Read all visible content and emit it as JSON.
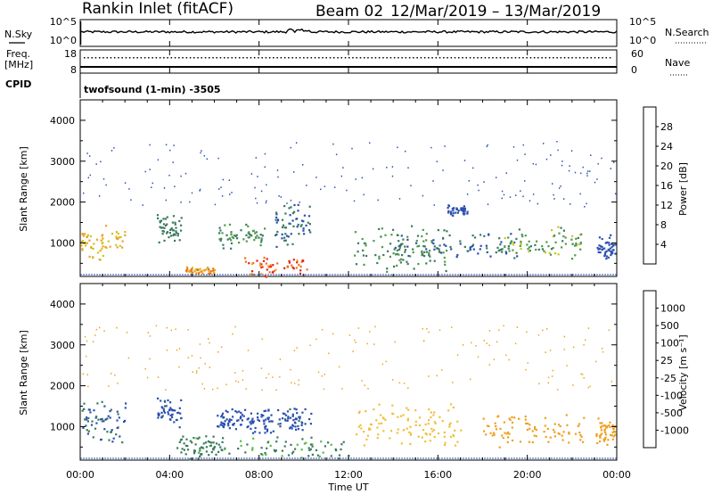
{
  "header": {
    "station": "Rankin Inlet (fitACF)",
    "beam": "Beam 02",
    "dates": "12/Mar/2019 – 13/Mar/2019"
  },
  "noise_panel": {
    "left_label": "N.Sky",
    "left_ticks": [
      "10^5",
      "10^0"
    ],
    "right_label": "N.Search",
    "right_ticks": [
      "10^5",
      "10^0"
    ]
  },
  "freq_panel": {
    "left_label_1": "Freq.",
    "left_label_2": "[MHz]",
    "left_ticks": [
      "18",
      "8"
    ],
    "right_label": "Nave",
    "right_ticks": [
      "60",
      "0"
    ]
  },
  "cpid": {
    "label": "CPID",
    "mode_text": "twofsound (1-min) -3505"
  },
  "colors": {
    "background": "#ffffff",
    "axis": "#000000",
    "power_scale": [
      "#1a1aff",
      "#2a4fb0",
      "#3a7a5e",
      "#4f9a4a",
      "#c8c820",
      "#f0a020",
      "#f07020",
      "#e82010"
    ],
    "velocity_scale": [
      "#1a1aff",
      "#2a4fb0",
      "#3a7a5e",
      "#50c040",
      "#b8b8b8",
      "#f0c040",
      "#f0a020",
      "#f06020",
      "#e82010"
    ]
  },
  "chart_data": [
    {
      "type": "heatmap",
      "name": "power",
      "ylabel": "Slant Range [km]",
      "yticks": [
        "1000",
        "2000",
        "3000",
        "4000"
      ],
      "ylim": [
        180,
        4500
      ],
      "colorbar_label": "Power [dB]",
      "colorbar_ticks": [
        "4",
        "8",
        "12",
        "16",
        "20",
        "24",
        "28"
      ],
      "colorbar_range": [
        0,
        32
      ],
      "clusters": [
        {
          "t": [
            0.0,
            2.0
          ],
          "r": [
            550,
            1500
          ],
          "value": 20
        },
        {
          "t": [
            3.4,
            4.5
          ],
          "r": [
            950,
            1750
          ],
          "value": 10
        },
        {
          "t": [
            6.1,
            8.3
          ],
          "r": [
            850,
            1550
          ],
          "value": 12
        },
        {
          "t": [
            8.6,
            10.3
          ],
          "r": [
            850,
            2100
          ],
          "value": 8
        },
        {
          "t": [
            4.7,
            6.0
          ],
          "r": [
            250,
            450
          ],
          "value": 22
        },
        {
          "t": [
            7.3,
            10.2
          ],
          "r": [
            180,
            700
          ],
          "value": 28
        },
        {
          "t": [
            12.2,
            16.5
          ],
          "r": [
            250,
            1500
          ],
          "value": 12
        },
        {
          "t": [
            14.0,
            19.5
          ],
          "r": [
            600,
            1300
          ],
          "value": 8
        },
        {
          "t": [
            16.3,
            17.3
          ],
          "r": [
            1650,
            1950
          ],
          "value": 6
        },
        {
          "t": [
            18.6,
            22.5
          ],
          "r": [
            500,
            1450
          ],
          "value": 14
        },
        {
          "t": [
            23.1,
            23.9
          ],
          "r": [
            500,
            1300
          ],
          "value": 6
        }
      ],
      "scatter": {
        "t": [
          0.0,
          24.0
        ],
        "r": [
          1900,
          3500
        ],
        "value": 4
      }
    },
    {
      "type": "heatmap",
      "name": "velocity",
      "ylabel": "Slant Range [km]",
      "yticks": [
        "1000",
        "2000",
        "3000",
        "4000"
      ],
      "ylim": [
        180,
        4500
      ],
      "colorbar_label": "Velocity [m s⁻¹]",
      "colorbar_ticks": [
        "1000",
        "500",
        "100",
        "25",
        "-25",
        "-100",
        "-500",
        "-1000"
      ],
      "clusters": [
        {
          "t": [
            0.0,
            2.0
          ],
          "r": [
            550,
            1700
          ],
          "value": 500
        },
        {
          "t": [
            3.4,
            4.5
          ],
          "r": [
            950,
            1750
          ],
          "value": 600
        },
        {
          "t": [
            6.1,
            7.4
          ],
          "r": [
            850,
            1550
          ],
          "value": 800
        },
        {
          "t": [
            7.4,
            8.6
          ],
          "r": [
            800,
            1500
          ],
          "value": 700
        },
        {
          "t": [
            8.8,
            10.3
          ],
          "r": [
            850,
            1600
          ],
          "value": 600
        },
        {
          "t": [
            4.3,
            6.0
          ],
          "r": [
            180,
            900
          ],
          "value": 120
        },
        {
          "t": [
            5.9,
            12.0
          ],
          "r": [
            180,
            800
          ],
          "value": 110
        },
        {
          "t": [
            12.3,
            17.0
          ],
          "r": [
            400,
            1700
          ],
          "value": -60
        },
        {
          "t": [
            18.0,
            22.5
          ],
          "r": [
            500,
            1400
          ],
          "value": -300
        },
        {
          "t": [
            23.0,
            23.9
          ],
          "r": [
            500,
            1300
          ],
          "value": -200
        }
      ],
      "scatter": {
        "t": [
          0.0,
          24.0
        ],
        "r": [
          1900,
          3500
        ],
        "value": -100
      }
    }
  ],
  "x_axis": {
    "label": "Time UT",
    "ticks": [
      "00:00",
      "04:00",
      "08:00",
      "12:00",
      "16:00",
      "20:00",
      "00:00"
    ],
    "range_hours": [
      0,
      24
    ]
  }
}
